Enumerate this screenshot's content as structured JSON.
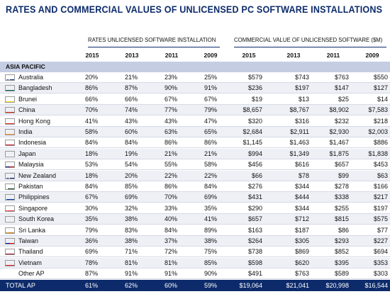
{
  "title": "RATES AND COMMERCIAL VALUES OF UNLICENSED PC SOFTWARE INSTALLATIONS",
  "group_rates": "RATES UNLICENSED SOFTWARE INSTALLATION",
  "group_values": "COMMERCIAL VALUE OF UNLICENSED SOFTWARE ($M)",
  "years": [
    "2015",
    "2013",
    "2011",
    "2009"
  ],
  "region": "ASIA PACIFIC",
  "rows": [
    {
      "country": "Australia",
      "flag": "australia-flag-icon",
      "rates": [
        "20%",
        "21%",
        "23%",
        "25%"
      ],
      "values": [
        "$579",
        "$743",
        "$763",
        "$550"
      ]
    },
    {
      "country": "Bangladesh",
      "flag": "bangladesh-flag-icon",
      "rates": [
        "86%",
        "87%",
        "90%",
        "91%"
      ],
      "values": [
        "$236",
        "$197",
        "$147",
        "$127"
      ]
    },
    {
      "country": "Brunei",
      "flag": "brunei-flag-icon",
      "rates": [
        "66%",
        "66%",
        "67%",
        "67%"
      ],
      "values": [
        "$19",
        "$13",
        "$25",
        "$14"
      ]
    },
    {
      "country": "China",
      "flag": "china-flag-icon",
      "rates": [
        "70%",
        "74%",
        "77%",
        "79%"
      ],
      "values": [
        "$8,657",
        "$8,767",
        "$8,902",
        "$7,583"
      ]
    },
    {
      "country": "Hong Kong",
      "flag": "hong-kong-flag-icon",
      "rates": [
        "41%",
        "43%",
        "43%",
        "47%"
      ],
      "values": [
        "$320",
        "$316",
        "$232",
        "$218"
      ]
    },
    {
      "country": "India",
      "flag": "india-flag-icon",
      "rates": [
        "58%",
        "60%",
        "63%",
        "65%"
      ],
      "values": [
        "$2,684",
        "$2,911",
        "$2,930",
        "$2,003"
      ]
    },
    {
      "country": "Indonesia",
      "flag": "indonesia-flag-icon",
      "rates": [
        "84%",
        "84%",
        "86%",
        "86%"
      ],
      "values": [
        "$1,145",
        "$1,463",
        "$1,467",
        "$886"
      ]
    },
    {
      "country": "Japan",
      "flag": "japan-flag-icon",
      "rates": [
        "18%",
        "19%",
        "21%",
        "21%"
      ],
      "values": [
        "$994",
        "$1,349",
        "$1,875",
        "$1,838"
      ]
    },
    {
      "country": "Malaysia",
      "flag": "malaysia-flag-icon",
      "rates": [
        "53%",
        "54%",
        "55%",
        "58%"
      ],
      "values": [
        "$456",
        "$616",
        "$657",
        "$453"
      ]
    },
    {
      "country": "New Zealand",
      "flag": "new-zealand-flag-icon",
      "rates": [
        "18%",
        "20%",
        "22%",
        "22%"
      ],
      "values": [
        "$66",
        "$78",
        "$99",
        "$63"
      ]
    },
    {
      "country": "Pakistan",
      "flag": "pakistan-flag-icon",
      "rates": [
        "84%",
        "85%",
        "86%",
        "84%"
      ],
      "values": [
        "$276",
        "$344",
        "$278",
        "$166"
      ]
    },
    {
      "country": "Philippines",
      "flag": "philippines-flag-icon",
      "rates": [
        "67%",
        "69%",
        "70%",
        "69%"
      ],
      "values": [
        "$431",
        "$444",
        "$338",
        "$217"
      ]
    },
    {
      "country": "Singapore",
      "flag": "singapore-flag-icon",
      "rates": [
        "30%",
        "32%",
        "33%",
        "35%"
      ],
      "values": [
        "$290",
        "$344",
        "$255",
        "$197"
      ]
    },
    {
      "country": "South Korea",
      "flag": "south-korea-flag-icon",
      "rates": [
        "35%",
        "38%",
        "40%",
        "41%"
      ],
      "values": [
        "$657",
        "$712",
        "$815",
        "$575"
      ]
    },
    {
      "country": "Sri Lanka",
      "flag": "sri-lanka-flag-icon",
      "rates": [
        "79%",
        "83%",
        "84%",
        "89%"
      ],
      "values": [
        "$163",
        "$187",
        "$86",
        "$77"
      ]
    },
    {
      "country": "Taiwan",
      "flag": "taiwan-flag-icon",
      "rates": [
        "36%",
        "38%",
        "37%",
        "38%"
      ],
      "values": [
        "$264",
        "$305",
        "$293",
        "$227"
      ]
    },
    {
      "country": "Thailand",
      "flag": "thailand-flag-icon",
      "rates": [
        "69%",
        "71%",
        "72%",
        "75%"
      ],
      "values": [
        "$738",
        "$869",
        "$852",
        "$694"
      ]
    },
    {
      "country": "Vietnam",
      "flag": "vietnam-flag-icon",
      "rates": [
        "78%",
        "81%",
        "81%",
        "85%"
      ],
      "values": [
        "$598",
        "$620",
        "$395",
        "$353"
      ]
    },
    {
      "country": "Other AP",
      "flag": "",
      "rates": [
        "87%",
        "91%",
        "91%",
        "90%"
      ],
      "values": [
        "$491",
        "$763",
        "$589",
        "$303"
      ]
    }
  ],
  "total": {
    "label": "TOTAL AP",
    "rates": [
      "61%",
      "62%",
      "60%",
      "59%"
    ],
    "values": [
      "$19,064",
      "$21,041",
      "$20,998",
      "$16,544"
    ]
  },
  "colors": {
    "accent": "#0d2b6b",
    "region_band": "#c4cde2",
    "alt_row": "#eef0f6"
  }
}
